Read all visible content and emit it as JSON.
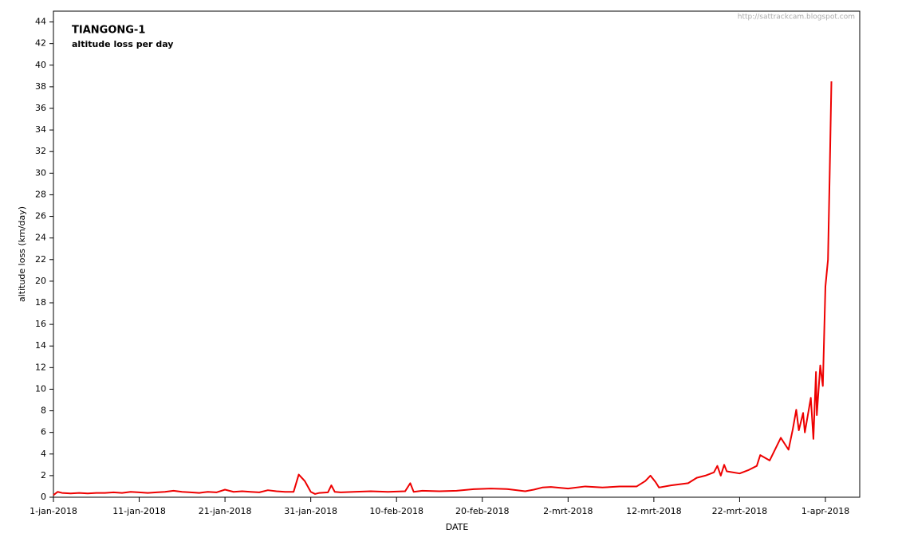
{
  "chart_data": {
    "type": "line",
    "title": "TIANGONG-1",
    "subtitle": "altitude loss per day",
    "watermark": "http://sattrackcam.blogspot.com",
    "x_label": "DATE",
    "y_label": "altitude loss  (km/day)",
    "xlim": [
      0,
      94
    ],
    "ylim": [
      0,
      45
    ],
    "xticks": [
      {
        "value": 0,
        "label": "1-jan-2018"
      },
      {
        "value": 10,
        "label": "11-jan-2018"
      },
      {
        "value": 20,
        "label": "21-jan-2018"
      },
      {
        "value": 30,
        "label": "31-jan-2018"
      },
      {
        "value": 40,
        "label": "10-feb-2018"
      },
      {
        "value": 50,
        "label": "20-feb-2018"
      },
      {
        "value": 60,
        "label": "2-mrt-2018"
      },
      {
        "value": 70,
        "label": "12-mrt-2018"
      },
      {
        "value": 80,
        "label": "22-mrt-2018"
      },
      {
        "value": 90,
        "label": "1-apr-2018"
      }
    ],
    "yticks": [
      0,
      2,
      4,
      6,
      8,
      10,
      12,
      14,
      16,
      18,
      20,
      22,
      24,
      26,
      28,
      30,
      32,
      34,
      36,
      38,
      40,
      42,
      44
    ],
    "grid": false,
    "series": [
      {
        "color": "#ee0000",
        "x": [
          0,
          0.5,
          1,
          2,
          3,
          4,
          5,
          6,
          7,
          8,
          9,
          10,
          11,
          12,
          13,
          14,
          15,
          16,
          17,
          18,
          19,
          20,
          21,
          22,
          23,
          24,
          25,
          26,
          27,
          28,
          28.6,
          29.3,
          30,
          30.5,
          31,
          32,
          32.4,
          32.8,
          33.5,
          35,
          37,
          39,
          41,
          41.6,
          42,
          43,
          45,
          47,
          49,
          51,
          53,
          55,
          56,
          57,
          58,
          60,
          62,
          64,
          66,
          68,
          69,
          69.6,
          70.2,
          70.6,
          72,
          74,
          75,
          76,
          77,
          77.4,
          77.8,
          78.2,
          78.5,
          80,
          81,
          82,
          82.4,
          83.5,
          84.8,
          85.7,
          86.2,
          86.6,
          86.9,
          87.4,
          87.6,
          88.3,
          88.6,
          88.9,
          89,
          89.4,
          89.7,
          90,
          90.3,
          90.5,
          90.7
        ],
        "values": [
          0.2,
          0.5,
          0.4,
          0.35,
          0.4,
          0.35,
          0.4,
          0.4,
          0.45,
          0.4,
          0.5,
          0.45,
          0.4,
          0.45,
          0.5,
          0.6,
          0.5,
          0.45,
          0.4,
          0.5,
          0.45,
          0.7,
          0.5,
          0.55,
          0.5,
          0.45,
          0.65,
          0.55,
          0.5,
          0.5,
          2.1,
          1.5,
          0.5,
          0.3,
          0.4,
          0.45,
          1.1,
          0.5,
          0.45,
          0.5,
          0.55,
          0.5,
          0.55,
          1.3,
          0.5,
          0.6,
          0.55,
          0.6,
          0.75,
          0.8,
          0.75,
          0.55,
          0.7,
          0.9,
          0.95,
          0.8,
          1.0,
          0.9,
          1.0,
          1.0,
          1.5,
          2.0,
          1.4,
          0.9,
          1.1,
          1.3,
          1.8,
          2.0,
          2.3,
          2.9,
          2.0,
          3.0,
          2.4,
          2.2,
          2.5,
          2.9,
          3.9,
          3.4,
          5.5,
          4.4,
          6.3,
          8.1,
          6.2,
          7.8,
          6.0,
          9.2,
          5.4,
          11.6,
          7.6,
          12.2,
          10.3,
          19.5,
          22,
          30,
          38.5
        ]
      }
    ]
  }
}
